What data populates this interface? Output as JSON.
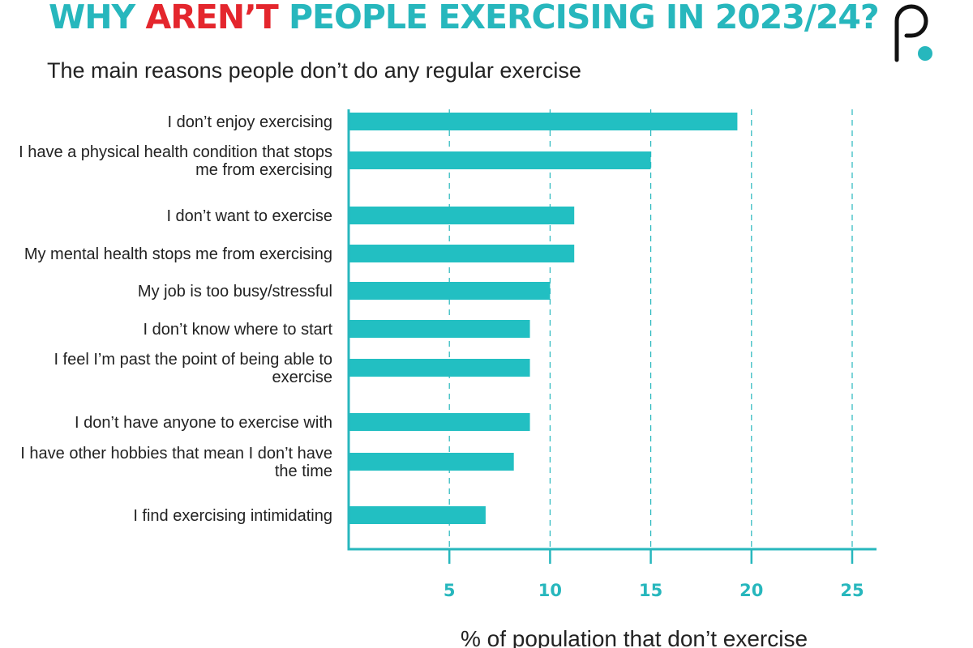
{
  "header": {
    "title_part1": "WHY ",
    "title_accent": "AREN’T",
    "title_part2": " PEOPLE EXERCISING IN 2023/24?",
    "subtitle": "The main reasons people don’t do any regular exercise"
  },
  "colors": {
    "bar": "#22bfc2",
    "axis": "#27b7bd",
    "accent": "#e4262d",
    "text": "#222222"
  },
  "logo": {
    "icon": "brand-logo-icon"
  },
  "chart_data": {
    "type": "bar",
    "orientation": "horizontal",
    "categories": [
      [
        "I don’t enjoy exercising"
      ],
      [
        "I have a physical health condition that stops",
        "me from exercising"
      ],
      [
        "I don’t want to exercise"
      ],
      [
        "My mental health stops me from exercising"
      ],
      [
        "My job is too busy/stressful"
      ],
      [
        "I don’t know where to start"
      ],
      [
        "I feel I’m past the point of being able to",
        "exercise"
      ],
      [
        "I don’t have anyone to exercise with"
      ],
      [
        "I have other hobbies that mean I don’t have",
        "the time"
      ],
      [
        "I find exercising intimidating"
      ]
    ],
    "values": [
      19.3,
      15.0,
      11.2,
      11.2,
      10.0,
      9.0,
      9.0,
      9.0,
      8.2,
      6.8
    ],
    "xlabel": "% of population that don’t exercise",
    "xlim": [
      0,
      26
    ],
    "xticks": [
      5,
      10,
      15,
      20,
      25
    ],
    "grid": "vertical dashed"
  }
}
